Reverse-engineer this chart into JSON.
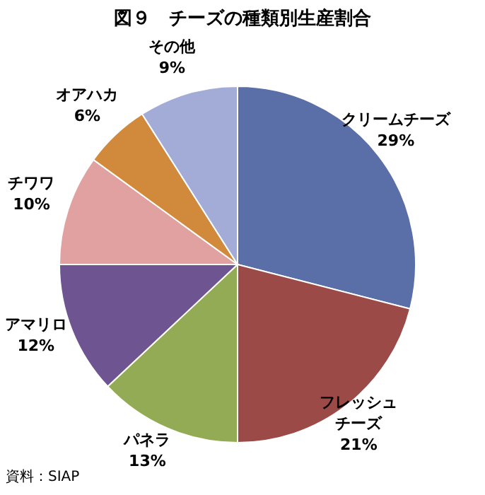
{
  "chart_data": {
    "type": "pie",
    "title": "図９　チーズの種類別生産割合",
    "categories": [
      "クリームチーズ",
      "フレッシュチーズ",
      "パネラ",
      "アマリロ",
      "チワワ",
      "オアハカ",
      "その他"
    ],
    "values": [
      29,
      21,
      13,
      12,
      10,
      6,
      9
    ],
    "value_labels": [
      "29%",
      "21%",
      "13%",
      "12%",
      "10%",
      "6%",
      "9%"
    ],
    "colors": [
      "#5a6ea8",
      "#9b4a47",
      "#93ab54",
      "#6e5491",
      "#e2a1a1",
      "#d18a3c",
      "#a3acd6"
    ],
    "annotations": [
      "資料：SIAP"
    ]
  }
}
